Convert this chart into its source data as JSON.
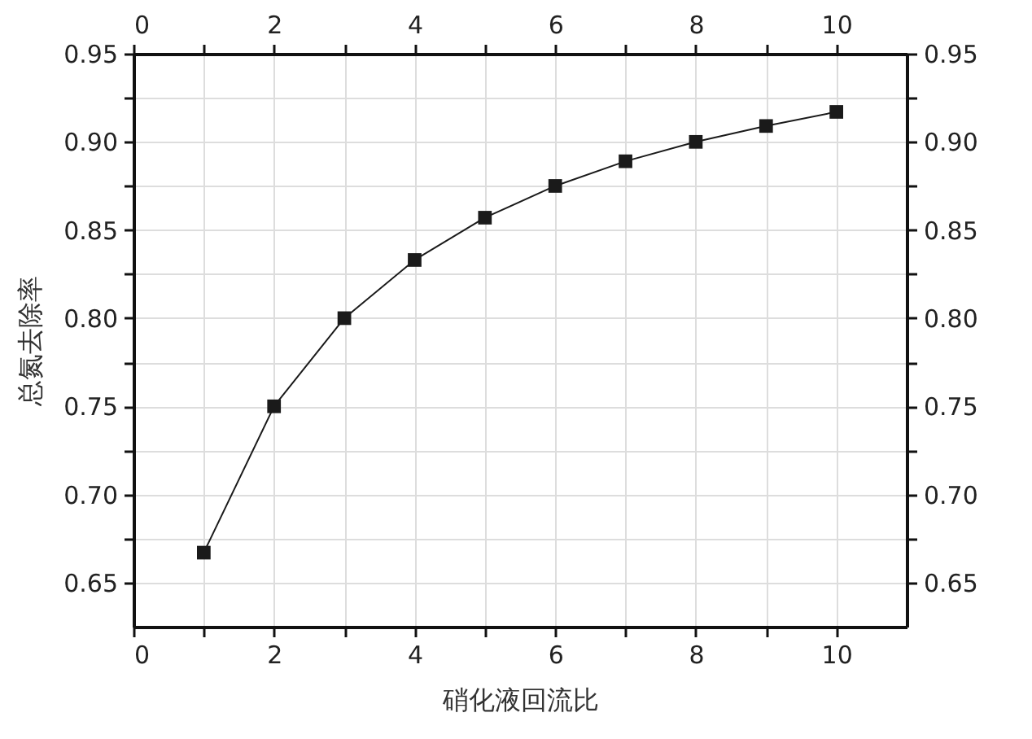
{
  "chart_data": {
    "type": "line",
    "xlabel": "硝化液回流比",
    "ylabel": "总氮去除率",
    "x": [
      1,
      2,
      3,
      4,
      5,
      6,
      7,
      8,
      9,
      10
    ],
    "series": [
      {
        "color": "#1a1a1a",
        "values": [
          0.667,
          0.75,
          0.8,
          0.833,
          0.857,
          0.875,
          0.889,
          0.9,
          0.909,
          0.917
        ]
      }
    ],
    "xlim": [
      0,
      11
    ],
    "ylim": [
      0.625,
      0.95
    ],
    "xticks": [
      0,
      {
        "value": 1,
        "label": null
      },
      2,
      {
        "value": 3,
        "label": null
      },
      4,
      {
        "value": 5,
        "label": null
      },
      6,
      {
        "value": 7,
        "label": null
      },
      8,
      {
        "value": 9,
        "label": null
      },
      10
    ],
    "x2lim": [
      0,
      11
    ],
    "x2ticks": [
      0,
      {
        "value": 1,
        "label": null
      },
      2,
      {
        "value": 3,
        "label": null
      },
      4,
      {
        "value": 5,
        "label": null
      },
      6,
      {
        "value": 7,
        "label": null
      },
      8,
      {
        "value": 9,
        "label": null
      },
      10
    ],
    "yticks": [
      {
        "value": 0.65,
        "label": "0.65"
      },
      {
        "value": 0.675,
        "label": null
      },
      {
        "value": 0.7,
        "label": "0.70"
      },
      {
        "value": 0.725,
        "label": null
      },
      {
        "value": 0.75,
        "label": "0.75"
      },
      {
        "value": 0.775,
        "label": null
      },
      {
        "value": 0.8,
        "label": "0.80"
      },
      {
        "value": 0.825,
        "label": null
      },
      {
        "value": 0.85,
        "label": "0.85"
      },
      {
        "value": 0.875,
        "label": null
      },
      {
        "value": 0.9,
        "label": "0.90"
      },
      {
        "value": 0.925,
        "label": null
      },
      {
        "value": 0.95,
        "label": "0.95"
      }
    ],
    "y2lim": [
      0.625,
      0.95
    ],
    "y2ticks": [
      {
        "value": 0.65,
        "label": "0.65"
      },
      {
        "value": 0.675,
        "label": null
      },
      {
        "value": 0.7,
        "label": "0.70"
      },
      {
        "value": 0.725,
        "label": null
      },
      {
        "value": 0.75,
        "label": "0.75"
      },
      {
        "value": 0.775,
        "label": null
      },
      {
        "value": 0.8,
        "label": "0.80"
      },
      {
        "value": 0.825,
        "label": null
      },
      {
        "value": 0.85,
        "label": "0.85"
      },
      {
        "value": 0.875,
        "label": null
      },
      {
        "value": 0.9,
        "label": "0.90"
      },
      {
        "value": 0.925,
        "label": null
      },
      {
        "value": 0.95,
        "label": "0.95"
      }
    ],
    "grid": true,
    "marker": "square",
    "line_style": "solid"
  }
}
